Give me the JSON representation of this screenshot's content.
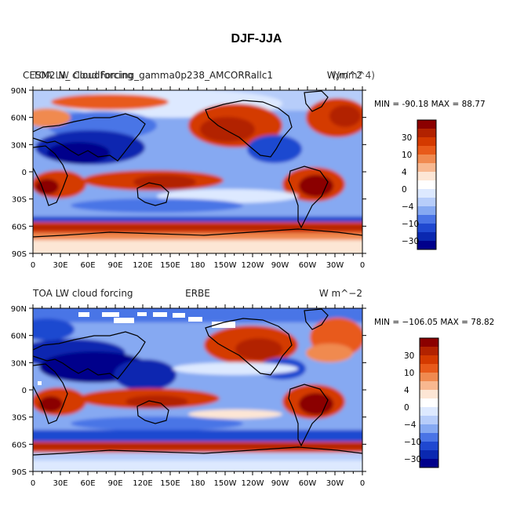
{
  "title": "DJF-JJA",
  "chart_data": [
    {
      "type": "heatmap",
      "kind": "global map (filled contour)",
      "left_label": "CESM2 N_ CloudForcing_gamma0p238_AMCORRallc1",
      "left_label_overlap": "TOA LW cloud forcing",
      "right_label": "W/m^2",
      "right_label_overlap": "(yr/m^4)",
      "stats": "MIN = -90.18 MAX =  88.77",
      "x_ticks": [
        "0",
        "30E",
        "60E",
        "90E",
        "120E",
        "150E",
        "180",
        "150W",
        "120W",
        "90W",
        "60W",
        "30W",
        "0"
      ],
      "y_ticks": [
        "90N",
        "60N",
        "30N",
        "0",
        "30S",
        "60S",
        "90S"
      ],
      "colorbar_ticks": [
        "30",
        "10",
        "4",
        "0",
        "−4",
        "−10",
        "−30"
      ]
    },
    {
      "type": "heatmap",
      "kind": "global map (filled contour)",
      "left_label": "TOA LW cloud forcing",
      "center_label": "ERBE",
      "right_label": "W m^−2",
      "stats": "MIN = −106.05 MAX =  78.82",
      "x_ticks": [
        "0",
        "30E",
        "60E",
        "90E",
        "120E",
        "150E",
        "180",
        "150W",
        "120W",
        "90W",
        "60W",
        "30W",
        "0"
      ],
      "y_ticks": [
        "90N",
        "60N",
        "30N",
        "0",
        "30S",
        "60S",
        "90S"
      ],
      "colorbar_ticks": [
        "30",
        "10",
        "4",
        "0",
        "−4",
        "−10",
        "−30"
      ]
    }
  ],
  "colors": {
    "scale": [
      "#8b0000",
      "#b22200",
      "#d43a00",
      "#e85a1a",
      "#f08a50",
      "#f8b890",
      "#fde6d5",
      "#ffffff",
      "#dde9ff",
      "#b7cdfa",
      "#86a9f2",
      "#4a74e6",
      "#1f48d0",
      "#0a28b0",
      "#00008b"
    ],
    "coast": "#000000"
  }
}
